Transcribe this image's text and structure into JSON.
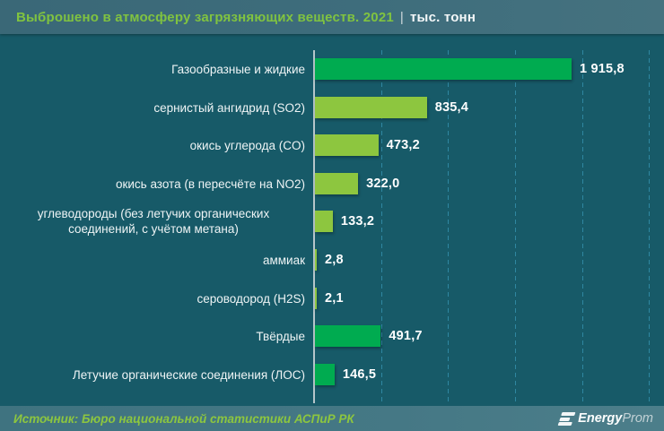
{
  "header": {
    "title": "Выброшено в атмосферу загрязняющих веществ. 2021",
    "separator": "|",
    "units": "тыс. тонн"
  },
  "chart_data": {
    "type": "bar",
    "orientation": "horizontal",
    "title": "Выброшено в атмосферу загрязняющих веществ. 2021 (тыс. тонн)",
    "xlim": [
      0,
      2500
    ],
    "grid_step": 500,
    "grid": "dashed-vertical",
    "legend": "none",
    "value_format": "space thousands separator, comma decimal",
    "items": [
      {
        "label": "Газообразные и жидкие",
        "value": 1915.8,
        "display": "1 915,8",
        "group": "total"
      },
      {
        "label": "сернистый ангидрид (SO2)",
        "value": 835.4,
        "display": "835,4",
        "group": "component"
      },
      {
        "label": "окись углерода (CO)",
        "value": 473.2,
        "display": "473,2",
        "group": "component"
      },
      {
        "label": "окись азота (в пересчёте на NO2)",
        "value": 322.0,
        "display": "322,0",
        "group": "component"
      },
      {
        "label": "углеводороды (без летучих органических соединений, с учётом метана)",
        "value": 133.2,
        "display": "133,2",
        "group": "component"
      },
      {
        "label": "аммиак",
        "value": 2.8,
        "display": "2,8",
        "group": "component"
      },
      {
        "label": "сероводород (H2S)",
        "value": 2.1,
        "display": "2,1",
        "group": "component"
      },
      {
        "label": "Твёрдые",
        "value": 491.7,
        "display": "491,7",
        "group": "total"
      },
      {
        "label": "Летучие органические соединения (ЛОС)",
        "value": 146.5,
        "display": "146,5",
        "group": "total"
      }
    ],
    "colors": {
      "total": "#00ab50",
      "component": "#8dc63f",
      "title_accent": "#80c340",
      "gridline": "#2f87a1"
    }
  },
  "footer": {
    "source": "Источник: Бюро национальной статистики АСПиР РК",
    "logo": {
      "bold": "Energy",
      "light": "Prom"
    }
  }
}
